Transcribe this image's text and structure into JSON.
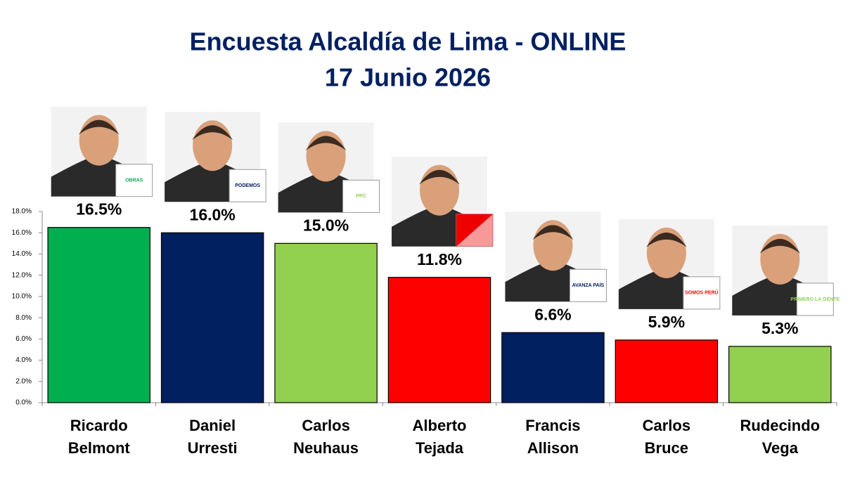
{
  "chart_data": {
    "type": "bar",
    "title": "Encuesta Alcaldía de Lima - ONLINE",
    "subtitle": "17 Junio 2026",
    "categories": [
      "Ricardo Belmont",
      "Daniel Urresti",
      "Carlos Neuhaus",
      "Alberto Tejada",
      "Francis Allison",
      "Carlos Bruce",
      "Rudecindo Vega"
    ],
    "values": [
      16.5,
      16.0,
      15.0,
      11.8,
      6.6,
      5.9,
      5.3
    ],
    "value_labels": [
      "16.5%",
      "16.0%",
      "15.0%",
      "11.8%",
      "6.6%",
      "5.9%",
      "5.3%"
    ],
    "colors": [
      "#00b050",
      "#002060",
      "#92d050",
      "#ff0000",
      "#002060",
      "#ff0000",
      "#92d050"
    ],
    "party_logos": [
      "OBRAS",
      "PODEMOS",
      "PPC",
      null,
      "AVANZA PAÍS",
      "SOMOS PERÚ",
      "PRIMERO LA GENTE"
    ],
    "ylim": [
      0,
      18
    ],
    "yticks": [
      {
        "value": 0,
        "label": "0.0%"
      },
      {
        "value": 2,
        "label": "2.0%"
      },
      {
        "value": 4,
        "label": "4.0%"
      },
      {
        "value": 6,
        "label": "6.0%"
      },
      {
        "value": 8,
        "label": "8.0%"
      },
      {
        "value": 10,
        "label": "10.0%"
      },
      {
        "value": 12,
        "label": "12.0%"
      },
      {
        "value": 14,
        "label": "14.0%"
      },
      {
        "value": 16,
        "label": "16.0%"
      },
      {
        "value": 18,
        "label": "18.0%"
      }
    ],
    "grid": false
  }
}
